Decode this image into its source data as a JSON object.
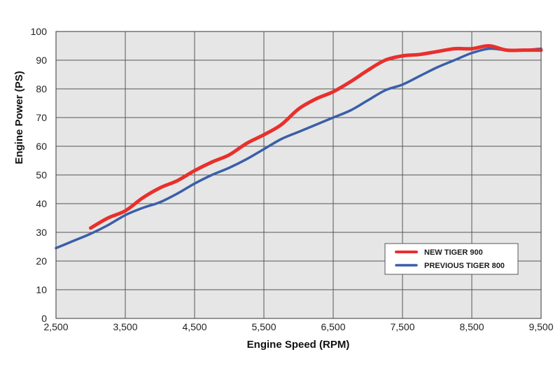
{
  "chart_data": {
    "type": "line",
    "xlabel": "Engine Speed (RPM)",
    "ylabel": "Engine Power (PS)",
    "xlim": [
      2500,
      9500
    ],
    "ylim": [
      0,
      100
    ],
    "x_ticks": [
      2500,
      3500,
      4500,
      5500,
      6500,
      7500,
      8500,
      9500
    ],
    "x_tick_labels": [
      "2,500",
      "3,500",
      "4,500",
      "5,500",
      "6,500",
      "7,500",
      "8,500",
      "9,500"
    ],
    "y_ticks": [
      0,
      10,
      20,
      30,
      40,
      50,
      60,
      70,
      80,
      90,
      100
    ],
    "y_tick_labels": [
      "0",
      "10",
      "20",
      "30",
      "40",
      "50",
      "60",
      "70",
      "80",
      "90",
      "100"
    ],
    "grid": true,
    "legend_position": "lower-right",
    "series": [
      {
        "name": "NEW TIGER 900",
        "color": "#e8302c",
        "x": [
          3000,
          3250,
          3500,
          3750,
          4000,
          4250,
          4500,
          4750,
          5000,
          5250,
          5500,
          5750,
          6000,
          6250,
          6500,
          6750,
          7000,
          7250,
          7500,
          7750,
          8000,
          8250,
          8500,
          8750,
          9000,
          9250,
          9500
        ],
        "y": [
          31.5,
          35,
          37.5,
          42,
          45.5,
          48,
          51.5,
          54.5,
          57,
          61,
          64,
          67.5,
          73,
          76.5,
          79,
          82.5,
          86.5,
          90,
          91.5,
          92,
          93,
          94,
          94,
          95,
          93.5,
          93.5,
          93.5
        ]
      },
      {
        "name": "PREVIOUS TIGER 800",
        "color": "#3a5fa8",
        "x": [
          2500,
          2750,
          3000,
          3250,
          3500,
          3750,
          4000,
          4250,
          4500,
          4750,
          5000,
          5250,
          5500,
          5750,
          6000,
          6250,
          6500,
          6750,
          7000,
          7250,
          7500,
          7750,
          8000,
          8250,
          8500,
          8750,
          9000,
          9250,
          9500
        ],
        "y": [
          24.5,
          27,
          29.5,
          32.5,
          36,
          38.5,
          40.5,
          43.5,
          47,
          50,
          52.5,
          55.5,
          59,
          62.5,
          65,
          67.5,
          70,
          72.5,
          76,
          79.5,
          81.5,
          84.5,
          87.5,
          90,
          92.5,
          94,
          93.5,
          93.5,
          94
        ]
      }
    ]
  }
}
